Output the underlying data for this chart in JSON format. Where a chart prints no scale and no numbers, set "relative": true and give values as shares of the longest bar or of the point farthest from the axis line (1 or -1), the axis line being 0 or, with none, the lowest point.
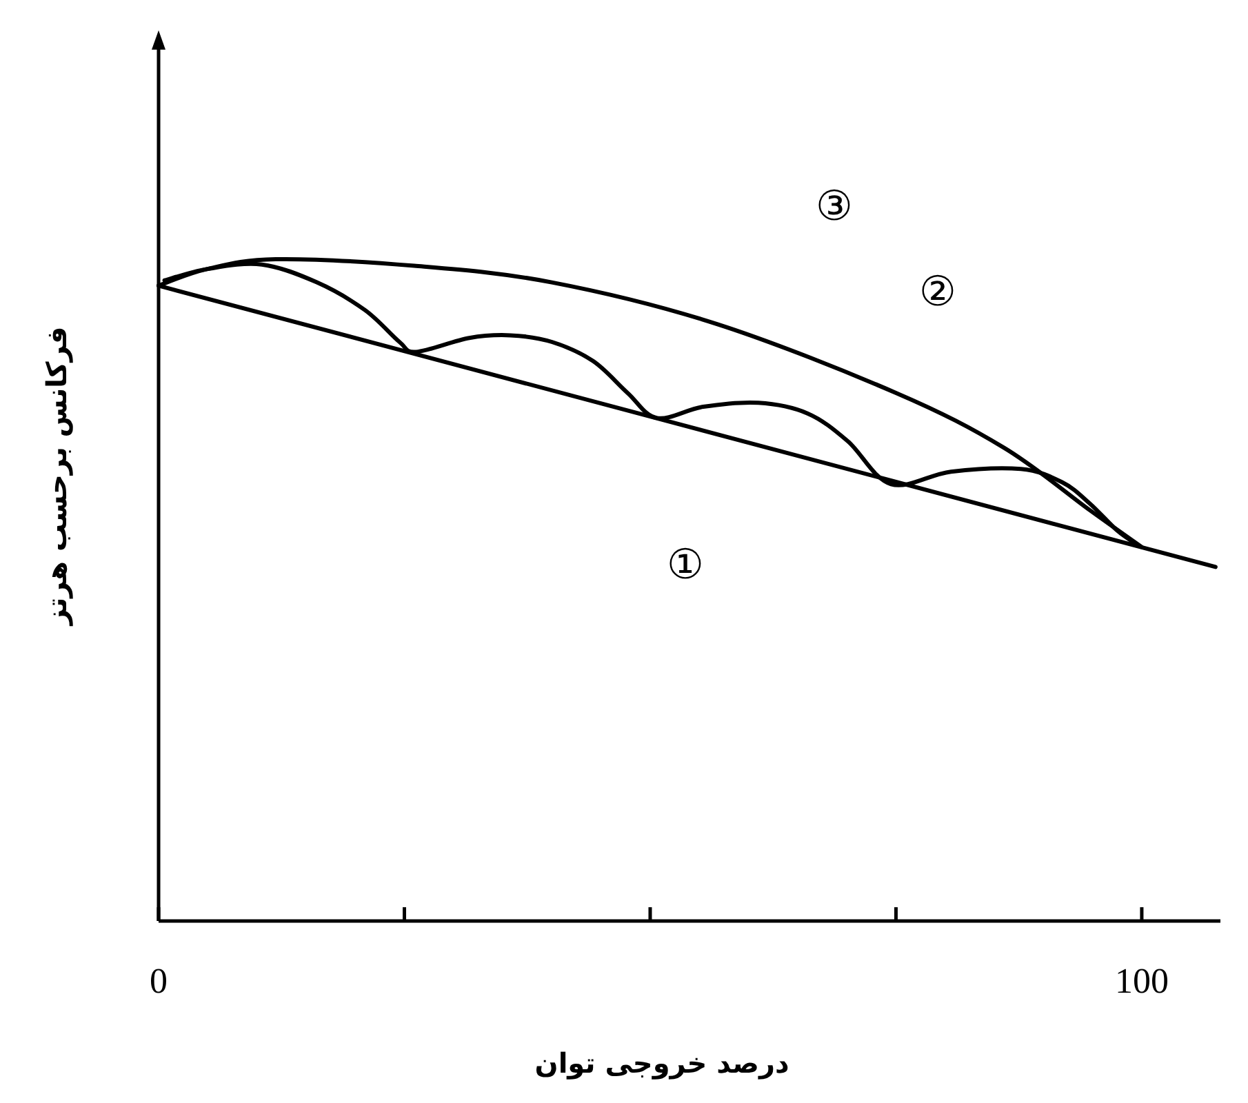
{
  "chart_data": {
    "type": "line",
    "relative": true,
    "xlabel": "درصد خروجی توان",
    "ylabel": "فرکانس برحسب هرتز",
    "xlim": [
      0,
      108
    ],
    "xticks": [
      0,
      {
        "value": 25,
        "label": null
      },
      {
        "value": 50,
        "label": null
      },
      {
        "value": 75,
        "label": null
      },
      100
    ],
    "line_style": "solid",
    "annotations": [
      "①",
      "②",
      "③"
    ],
    "series": [
      {
        "color": "#000000",
        "x": [
          0,
          107.5
        ],
        "values": [
          0.96,
          0.535
        ]
      },
      {
        "color": "#000000",
        "x": [
          0.6,
          4.9,
          10.5,
          16.1,
          21.0,
          24.5,
          26.2,
          31.6,
          35.8,
          40.0,
          44.2,
          47.7,
          50.7,
          55.4,
          61.0,
          66.0,
          70.1,
          74.5,
          80.6,
          87.7,
          91.9,
          94.7,
          97.5,
          99.4
        ],
        "values": [
          0.968,
          0.985,
          0.992,
          0.965,
          0.923,
          0.875,
          0.86,
          0.881,
          0.885,
          0.875,
          0.846,
          0.798,
          0.76,
          0.777,
          0.783,
          0.767,
          0.725,
          0.66,
          0.679,
          0.683,
          0.663,
          0.631,
          0.59,
          0.57
        ]
      },
      {
        "color": "#000000",
        "x": [
          0,
          4.9,
          11.9,
          26,
          40,
          56.8,
          75,
          86,
          94.7,
          100
        ],
        "values": [
          0.96,
          0.985,
          1.0,
          0.99,
          0.965,
          0.902,
          0.798,
          0.715,
          0.621,
          0.565
        ]
      }
    ]
  }
}
